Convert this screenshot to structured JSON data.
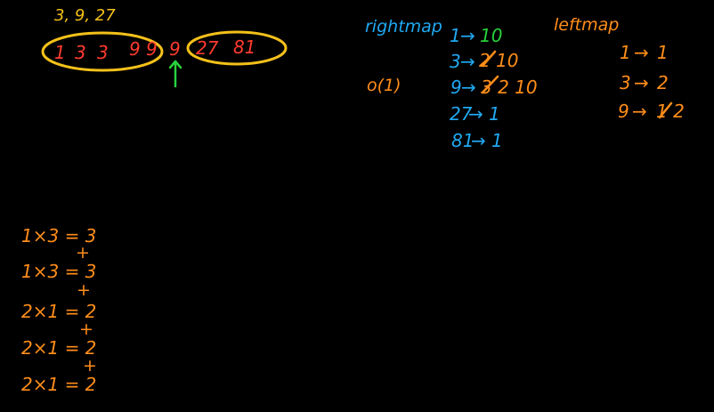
{
  "top_left": {
    "label": "3, 9, 27",
    "array_items": [
      "1",
      "3",
      "3",
      "9",
      "9",
      "9",
      "27",
      "81"
    ],
    "pivot_index": 5
  },
  "middle": {
    "rightmap_label": "rightmap",
    "o_label": "o(1)",
    "entries": [
      {
        "key": "1",
        "arrow": "→",
        "value": "10"
      },
      {
        "key": "3",
        "arrow": "→",
        "value": "2 10",
        "strike": "2"
      },
      {
        "key": "9",
        "arrow": "→",
        "value": "3 2 10",
        "strike": "3"
      },
      {
        "key": "27",
        "arrow": "→",
        "value": "1"
      },
      {
        "key": "81",
        "arrow": "→",
        "value": "1"
      }
    ]
  },
  "right": {
    "leftmap_label": "leftmap",
    "entries": [
      {
        "key": "1",
        "arrow": "→",
        "value": "1"
      },
      {
        "key": "3",
        "arrow": "→",
        "value": "2"
      },
      {
        "key": "9",
        "arrow": "→",
        "value": "1 2",
        "strike": "1"
      }
    ]
  },
  "bottom_left": {
    "lines": [
      {
        "expr": "1×3 = 3",
        "plus": "+"
      },
      {
        "expr": "1×3 = 3",
        "plus": "+"
      },
      {
        "expr": "2×1 = 2",
        "plus": "+"
      },
      {
        "expr": "2×1 = 2",
        "plus": "+"
      },
      {
        "expr": "2×1 = 2",
        "plus": ""
      }
    ]
  },
  "colors": {
    "background": "#000000",
    "yellow": "#f4c11a",
    "red": "#ff3b2f",
    "blue": "#20a9f2",
    "orange": "#ff8d1a",
    "green": "#29d13b"
  }
}
